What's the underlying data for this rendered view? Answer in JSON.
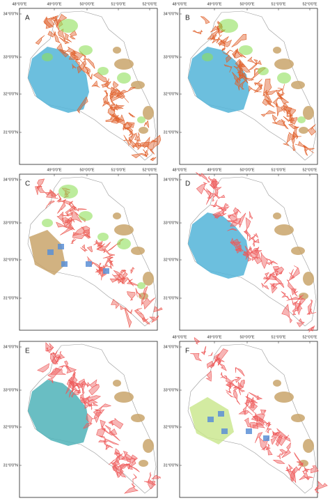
{
  "panels": [
    {
      "label": "A",
      "lon_labels": [
        "48°0'0\"E",
        "49°0'0\"E",
        "50°0'0\"E",
        "51°0'0\"E",
        "52°0'0\"E"
      ],
      "lat_labels": [
        "34°0'0\"N",
        "33°0'0\"N",
        "32°0'0\"N",
        "31°0'0\"N"
      ]
    },
    {
      "label": "B",
      "lon_labels": [
        "48°0'0\"E",
        "49°0'0\"E",
        "50°0'0\"E",
        "51°0'0\"E",
        "52°0'0\"E"
      ],
      "lat_labels": [
        "34°0'0\"N",
        "33°0'0\"N",
        "32°0'0\"N",
        "31°0'0\"N"
      ]
    },
    {
      "label": "C",
      "lon_labels": [
        "49°0'0\"E",
        "50°0'0\"E",
        "51°0'0\"E",
        "52°0'0\"E"
      ],
      "lat_labels": [
        "34°0'0\"N",
        "33°0'0\"N",
        "32°0'0\"N",
        "31°0'0\"N"
      ]
    },
    {
      "label": "D",
      "lon_labels": [
        "48°0'0\"E",
        "49°0'0\"E",
        "50°0'0\"E",
        "51°0'0\"E",
        "52°0'0\"E"
      ],
      "lat_labels": [
        "34°0'0\"N",
        "33°0'0\"N",
        "32°0'0\"N",
        "31°0'0\"N"
      ]
    },
    {
      "label": "E",
      "lon_labels": [],
      "lat_labels": [
        "34°0'0\"N",
        "33°0'0\"N",
        "32°0'0\"N",
        "31°0'0\"N"
      ]
    },
    {
      "label": "F",
      "lon_labels": [
        "48°0'0\"E",
        "49°0'0\"E",
        "50°0'0\"E",
        "51°0'0\"E",
        "52°0'0\"E"
      ],
      "lat_labels": [
        "34°0'0\"N",
        "33°0'0\"N",
        "32°0'0\"N",
        "31°0'0\"N"
      ]
    }
  ]
}
